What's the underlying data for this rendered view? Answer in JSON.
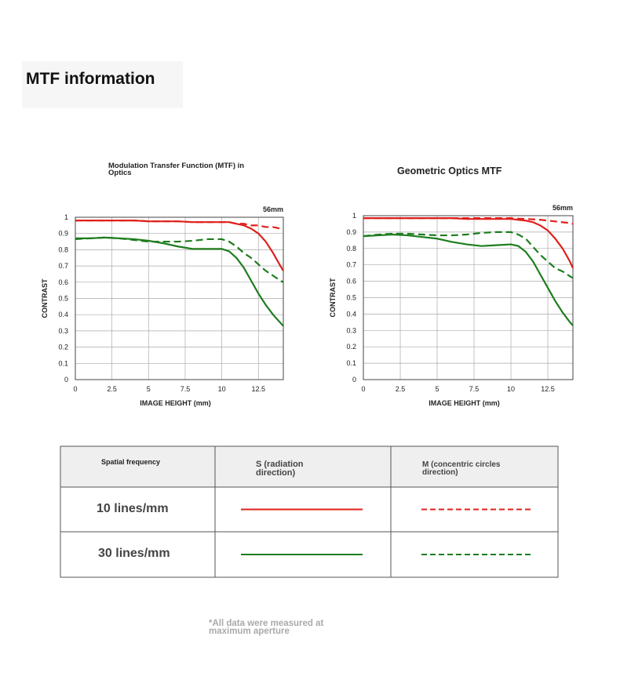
{
  "header": {
    "title": "MTF information"
  },
  "chart_data": [
    {
      "type": "line",
      "title": "Modulation Transfer Function (MTF) in Optics",
      "annotation": "56mm",
      "x_label": "IMAGE HEIGHT (mm)",
      "y_label": "CONTRAST",
      "x": [
        0,
        1,
        2,
        3,
        4,
        5,
        6,
        7,
        8,
        9,
        10,
        10.5,
        11,
        11.5,
        12,
        12.5,
        13,
        13.5,
        14,
        14.2
      ],
      "xlim": [
        0,
        14.2
      ],
      "xticks": [
        0,
        2.5,
        5,
        7.5,
        10,
        12.5
      ],
      "ylim": [
        0,
        1
      ],
      "yticks": [
        0,
        0.1,
        0.2,
        0.3,
        0.4,
        0.5,
        0.6,
        0.7,
        0.8,
        0.9,
        1
      ],
      "grid": true,
      "series": [
        {
          "color": "#e0201c",
          "dashed": false,
          "values": [
            0.98,
            0.98,
            0.98,
            0.98,
            0.98,
            0.975,
            0.975,
            0.975,
            0.97,
            0.97,
            0.97,
            0.97,
            0.96,
            0.95,
            0.93,
            0.9,
            0.85,
            0.78,
            0.7,
            0.67
          ]
        },
        {
          "color": "#e0201c",
          "dashed": true,
          "values": [
            0.98,
            0.98,
            0.98,
            0.98,
            0.98,
            0.975,
            0.975,
            0.975,
            0.97,
            0.97,
            0.97,
            0.97,
            0.96,
            0.96,
            0.95,
            0.95,
            0.94,
            0.94,
            0.93,
            0.92
          ]
        },
        {
          "color": "#1e7d1e",
          "dashed": false,
          "values": [
            0.87,
            0.87,
            0.875,
            0.87,
            0.865,
            0.855,
            0.84,
            0.82,
            0.805,
            0.805,
            0.805,
            0.79,
            0.75,
            0.69,
            0.61,
            0.53,
            0.46,
            0.4,
            0.35,
            0.33
          ]
        },
        {
          "color": "#1e7d1e",
          "dashed": true,
          "values": [
            0.865,
            0.87,
            0.875,
            0.87,
            0.86,
            0.85,
            0.85,
            0.85,
            0.855,
            0.865,
            0.865,
            0.85,
            0.82,
            0.78,
            0.75,
            0.71,
            0.67,
            0.64,
            0.61,
            0.6
          ]
        }
      ]
    },
    {
      "type": "line",
      "title": "Geometric Optics MTF",
      "annotation": "56mm",
      "x_label": "IMAGE HEIGHT (mm)",
      "y_label": "CONTRAST",
      "x": [
        0,
        1,
        2,
        3,
        4,
        5,
        6,
        7,
        8,
        9,
        10,
        10.5,
        11,
        11.5,
        12,
        12.5,
        13,
        13.5,
        14,
        14.2
      ],
      "xlim": [
        0,
        14.2
      ],
      "xticks": [
        0,
        2.5,
        5,
        7.5,
        10,
        12.5
      ],
      "ylim": [
        0,
        1
      ],
      "yticks": [
        0,
        0.1,
        0.2,
        0.3,
        0.4,
        0.5,
        0.6,
        0.7,
        0.8,
        0.9,
        1
      ],
      "grid": true,
      "series": [
        {
          "color": "#e0201c",
          "dashed": false,
          "values": [
            0.985,
            0.985,
            0.985,
            0.985,
            0.985,
            0.985,
            0.985,
            0.98,
            0.98,
            0.98,
            0.98,
            0.975,
            0.97,
            0.96,
            0.94,
            0.91,
            0.86,
            0.8,
            0.72,
            0.68
          ]
        },
        {
          "color": "#e0201c",
          "dashed": true,
          "values": [
            0.985,
            0.985,
            0.985,
            0.985,
            0.985,
            0.985,
            0.985,
            0.985,
            0.985,
            0.985,
            0.985,
            0.982,
            0.98,
            0.978,
            0.975,
            0.97,
            0.965,
            0.96,
            0.955,
            0.95
          ]
        },
        {
          "color": "#1e7d1e",
          "dashed": false,
          "values": [
            0.875,
            0.88,
            0.885,
            0.88,
            0.87,
            0.86,
            0.84,
            0.825,
            0.815,
            0.82,
            0.825,
            0.815,
            0.78,
            0.72,
            0.64,
            0.56,
            0.48,
            0.41,
            0.35,
            0.33
          ]
        },
        {
          "color": "#1e7d1e",
          "dashed": true,
          "values": [
            0.875,
            0.885,
            0.89,
            0.89,
            0.885,
            0.88,
            0.88,
            0.885,
            0.895,
            0.9,
            0.9,
            0.885,
            0.86,
            0.81,
            0.76,
            0.72,
            0.68,
            0.66,
            0.63,
            0.62
          ]
        }
      ]
    }
  ],
  "legend_table": {
    "header": [
      "Spatial frequency",
      "S (radiation direction)",
      "M (concentric circles direction)"
    ],
    "rows": [
      "10 lines/mm",
      "30 lines/mm"
    ]
  },
  "footnote": "*All data were measured at maximum aperture"
}
